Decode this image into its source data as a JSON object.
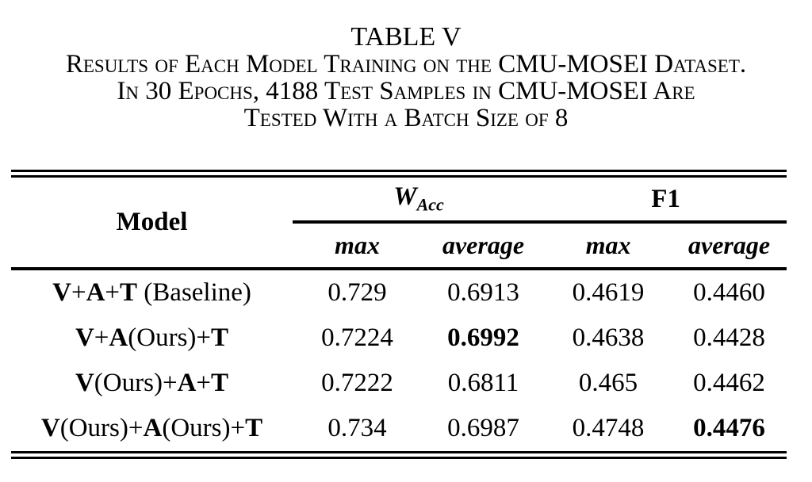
{
  "title": "TABLE V",
  "caption_lines": [
    "Results of Each Model Training on the CMU-MOSEI Dataset.",
    "In 30 Epochs, 4188 Test Samples in CMU-MOSEI Are",
    "Tested With a Batch Size of 8"
  ],
  "table": {
    "model_header": "Model",
    "wacc_header": {
      "base": "W",
      "sub": "Acc"
    },
    "f1_header": "F1",
    "sub_headers": [
      "max",
      "average",
      "max",
      "average"
    ],
    "rows": [
      {
        "model": [
          {
            "text": "V",
            "bold": true
          },
          {
            "text": "+",
            "bold": false
          },
          {
            "text": "A",
            "bold": true
          },
          {
            "text": "+",
            "bold": false
          },
          {
            "text": "T",
            "bold": true
          },
          {
            "text": " (Baseline)",
            "bold": false
          }
        ],
        "values": [
          {
            "text": "0.729",
            "bold": false
          },
          {
            "text": "0.6913",
            "bold": false
          },
          {
            "text": "0.4619",
            "bold": false
          },
          {
            "text": "0.4460",
            "bold": false
          }
        ]
      },
      {
        "model": [
          {
            "text": "V",
            "bold": true
          },
          {
            "text": "+",
            "bold": false
          },
          {
            "text": "A",
            "bold": true
          },
          {
            "text": "(Ours)+",
            "bold": false
          },
          {
            "text": "T",
            "bold": true
          }
        ],
        "values": [
          {
            "text": "0.7224",
            "bold": false
          },
          {
            "text": "0.6992",
            "bold": true
          },
          {
            "text": "0.4638",
            "bold": false
          },
          {
            "text": "0.4428",
            "bold": false
          }
        ]
      },
      {
        "model": [
          {
            "text": "V",
            "bold": true
          },
          {
            "text": "(Ours)+",
            "bold": false
          },
          {
            "text": "A",
            "bold": true
          },
          {
            "text": "+",
            "bold": false
          },
          {
            "text": "T",
            "bold": true
          }
        ],
        "values": [
          {
            "text": "0.7222",
            "bold": false
          },
          {
            "text": "0.6811",
            "bold": false
          },
          {
            "text": "0.465",
            "bold": false
          },
          {
            "text": "0.4462",
            "bold": false
          }
        ]
      },
      {
        "model": [
          {
            "text": "V",
            "bold": true
          },
          {
            "text": "(Ours)+",
            "bold": false
          },
          {
            "text": "A",
            "bold": true
          },
          {
            "text": "(Ours)+",
            "bold": false
          },
          {
            "text": "T",
            "bold": true
          }
        ],
        "values": [
          {
            "text": "0.734",
            "bold": false
          },
          {
            "text": "0.6987",
            "bold": false
          },
          {
            "text": "0.4748",
            "bold": false
          },
          {
            "text": "0.4476",
            "bold": true
          }
        ]
      }
    ]
  },
  "colors": {
    "background": "#ffffff",
    "text": "#000000",
    "rule": "#000000"
  }
}
